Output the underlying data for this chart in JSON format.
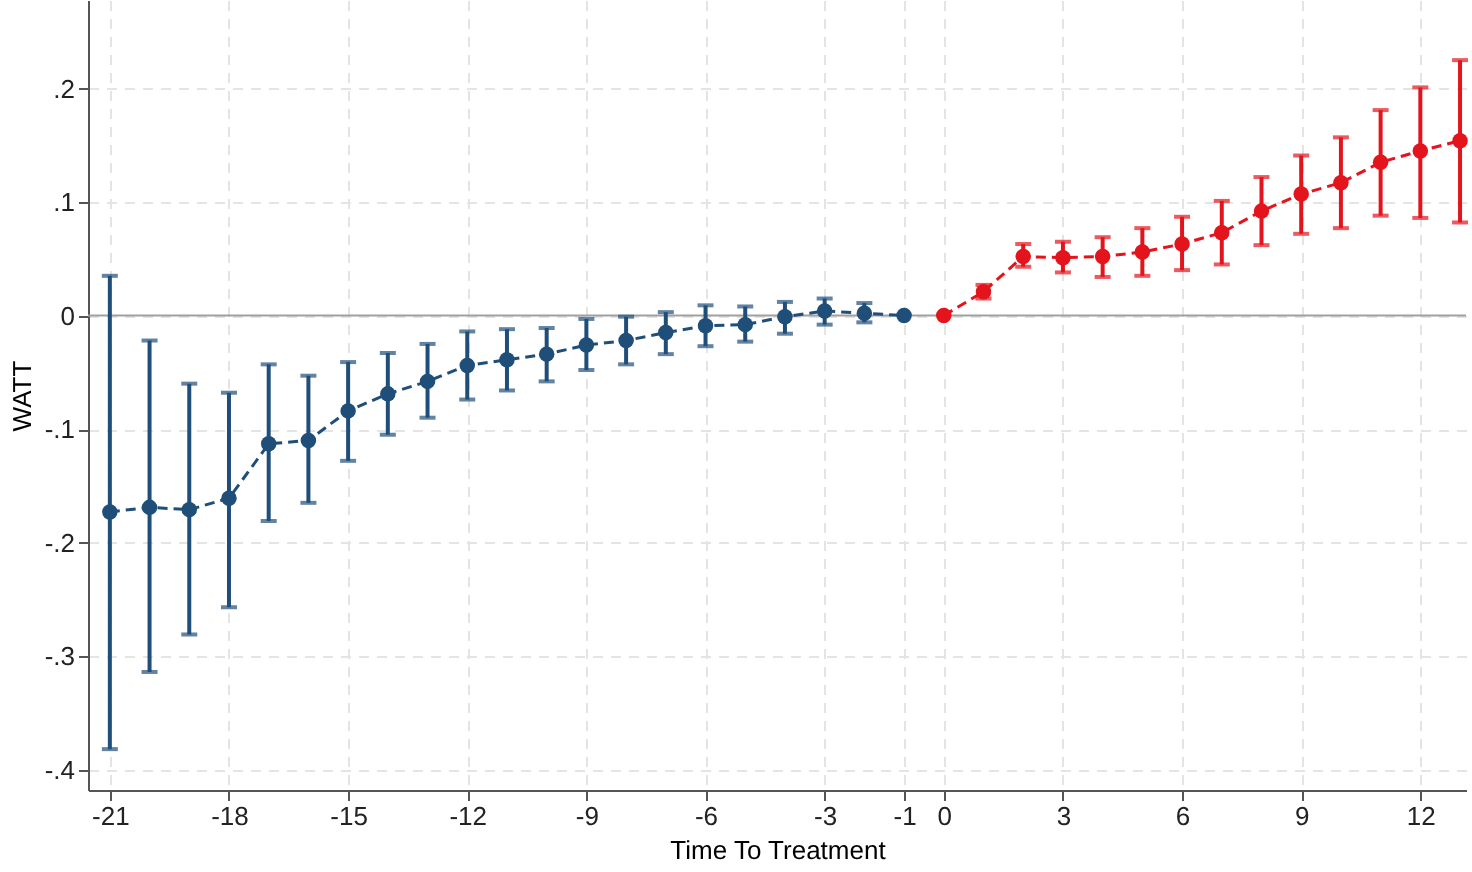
{
  "chart_data": {
    "type": "line",
    "xlabel": "Time To Treatment",
    "ylabel": "WATT",
    "xlim": [
      -21.55,
      13.15
    ],
    "ylim": [
      -0.418,
      0.278
    ],
    "xticks": [
      -21,
      -18,
      -15,
      -12,
      -9,
      -6,
      -3,
      -1,
      0,
      3,
      6,
      9,
      12
    ],
    "yticks": [
      {
        "value": -0.4,
        "label": "-.4"
      },
      {
        "value": -0.3,
        "label": "-.3"
      },
      {
        "value": -0.2,
        "label": "-.2"
      },
      {
        "value": -0.1,
        "label": "-.1"
      },
      {
        "value": 0,
        "label": "0"
      },
      {
        "value": 0.1,
        "label": ".1"
      },
      {
        "value": 0.2,
        "label": ".2"
      }
    ],
    "grid": true,
    "marker": "circle",
    "line_style": "dashed",
    "ref_lines": [
      {
        "axis": "y",
        "value": 0,
        "color": "#a0a0a0"
      }
    ],
    "series": [
      {
        "color": "#1f4e79",
        "x": [
          -21,
          -20,
          -19,
          -18,
          -17,
          -16,
          -15,
          -14,
          -13,
          -12,
          -11,
          -10,
          -9,
          -8,
          -7,
          -6,
          -5,
          -4,
          -3,
          -2,
          -1
        ],
        "values": [
          -0.173,
          -0.169,
          -0.171,
          -0.161,
          -0.113,
          -0.11,
          -0.084,
          -0.069,
          -0.058,
          -0.044,
          -0.039,
          -0.034,
          -0.026,
          -0.022,
          -0.015,
          -0.009,
          -0.008,
          -0.001,
          0.004,
          0.002,
          0
        ],
        "errors": [
          [
            -0.382,
            0.035
          ],
          [
            -0.314,
            -0.022
          ],
          [
            -0.281,
            -0.06
          ],
          [
            -0.257,
            -0.068
          ],
          [
            -0.181,
            -0.043
          ],
          [
            -0.165,
            -0.053
          ],
          [
            -0.128,
            -0.041
          ],
          [
            -0.105,
            -0.033
          ],
          [
            -0.09,
            -0.025
          ],
          [
            -0.074,
            -0.014
          ],
          [
            -0.066,
            -0.012
          ],
          [
            -0.058,
            -0.011
          ],
          [
            -0.048,
            -0.003
          ],
          [
            -0.043,
            -0.001
          ],
          [
            -0.034,
            0.003
          ],
          [
            -0.027,
            0.009
          ],
          [
            -0.023,
            0.008
          ],
          [
            -0.016,
            0.012
          ],
          [
            -0.008,
            0.015
          ],
          [
            -0.006,
            0.011
          ],
          null
        ]
      },
      {
        "color": "#e3141c",
        "x": [
          0,
          1,
          2,
          3,
          4,
          5,
          6,
          7,
          8,
          9,
          10,
          11,
          12,
          13
        ],
        "values": [
          0,
          0.021,
          0.052,
          0.051,
          0.052,
          0.056,
          0.063,
          0.073,
          0.092,
          0.107,
          0.117,
          0.135,
          0.145,
          0.154
        ],
        "errors": [
          null,
          [
            0.015,
            0.027
          ],
          [
            0.043,
            0.063
          ],
          [
            0.038,
            0.065
          ],
          [
            0.034,
            0.069
          ],
          [
            0.035,
            0.077
          ],
          [
            0.04,
            0.087
          ],
          [
            0.045,
            0.101
          ],
          [
            0.062,
            0.122
          ],
          [
            0.072,
            0.141
          ],
          [
            0.077,
            0.157
          ],
          [
            0.088,
            0.181
          ],
          [
            0.086,
            0.201
          ],
          [
            0.082,
            0.225
          ]
        ]
      }
    ]
  }
}
